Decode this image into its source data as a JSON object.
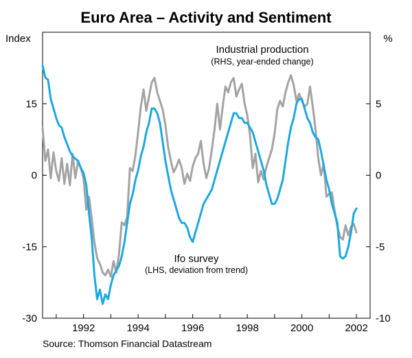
{
  "chart_data": {
    "type": "line",
    "title": "Euro Area – Activity and Sentiment",
    "left_axis": {
      "label": "Index",
      "ylim": [
        -30,
        30
      ],
      "ticks": [
        15,
        0,
        -15,
        -30
      ],
      "tick_labels": [
        "15",
        "0",
        "-15",
        "-30"
      ]
    },
    "right_axis": {
      "label": "%",
      "ylim": [
        -10,
        10
      ],
      "ticks": [
        5,
        0,
        -5,
        -10
      ],
      "tick_labels": [
        "5",
        "0",
        "-5",
        "-10"
      ]
    },
    "x_axis": {
      "xlim": [
        1990.5,
        2002.5
      ],
      "ticks": [
        1992,
        1994,
        1996,
        1998,
        2000,
        2002
      ],
      "tick_labels": [
        "1992",
        "1994",
        "1996",
        "1998",
        "2000",
        "2002"
      ]
    },
    "grid": false,
    "series": [
      {
        "name": "Industrial production",
        "annotation": "Industrial production",
        "annotation_sub": "(RHS, year-ended change)",
        "axis": "right",
        "color": "#a3a3a3",
        "x": [
          1990.5,
          1990.6,
          1990.7,
          1990.8,
          1990.9,
          1991.0,
          1991.1,
          1991.2,
          1991.3,
          1991.4,
          1991.5,
          1991.6,
          1991.7,
          1991.8,
          1991.9,
          1992.0,
          1992.1,
          1992.2,
          1992.3,
          1992.4,
          1992.5,
          1992.6,
          1992.7,
          1992.8,
          1992.9,
          1993.0,
          1993.1,
          1993.2,
          1993.3,
          1993.4,
          1993.5,
          1993.6,
          1993.7,
          1993.8,
          1993.9,
          1994.0,
          1994.1,
          1994.2,
          1994.3,
          1994.4,
          1994.5,
          1994.6,
          1994.7,
          1994.8,
          1994.9,
          1995.0,
          1995.1,
          1995.2,
          1995.3,
          1995.4,
          1995.5,
          1995.6,
          1995.7,
          1995.8,
          1995.9,
          1996.0,
          1996.1,
          1996.2,
          1996.3,
          1996.4,
          1996.5,
          1996.6,
          1996.7,
          1996.8,
          1996.9,
          1997.0,
          1997.1,
          1997.2,
          1997.3,
          1997.4,
          1997.5,
          1997.6,
          1997.7,
          1997.8,
          1997.9,
          1998.0,
          1998.1,
          1998.2,
          1998.3,
          1998.4,
          1998.5,
          1998.6,
          1998.7,
          1998.8,
          1998.9,
          1999.0,
          1999.1,
          1999.2,
          1999.3,
          1999.4,
          1999.5,
          1999.6,
          1999.7,
          1999.8,
          1999.9,
          2000.0,
          2000.1,
          2000.2,
          2000.3,
          2000.4,
          2000.5,
          2000.6,
          2000.7,
          2000.8,
          2000.9,
          2001.0,
          2001.1,
          2001.2,
          2001.3,
          2001.4,
          2001.5,
          2001.6,
          2001.7,
          2001.8,
          2001.9,
          2002.0
        ],
        "values": [
          3.3,
          1.0,
          1.8,
          -0.2,
          1.6,
          0.3,
          -0.4,
          1.2,
          -0.6,
          0.8,
          -0.7,
          1.5,
          -0.2,
          1.0,
          0.5,
          -0.2,
          -2.4,
          -1.5,
          -3.0,
          -4.7,
          -5.8,
          -6.2,
          -6.8,
          -7.0,
          -6.6,
          -7.1,
          -6.0,
          -6.8,
          -5.5,
          -3.3,
          -3.5,
          -2.9,
          0.5,
          0.3,
          1.4,
          3.0,
          4.8,
          6.0,
          4.5,
          5.5,
          6.5,
          6.8,
          5.8,
          5.2,
          4.6,
          3.5,
          2.0,
          1.0,
          0.2,
          0.6,
          1.1,
          0.5,
          -0.6,
          0.1,
          -0.4,
          0.6,
          1.2,
          1.5,
          2.4,
          0.8,
          -0.2,
          0.5,
          1.8,
          3.2,
          5.0,
          3.2,
          4.8,
          6.2,
          5.8,
          6.5,
          6.8,
          5.5,
          6.0,
          6.4,
          5.0,
          4.2,
          2.8,
          0.5,
          1.5,
          -0.5,
          0.3,
          -0.3,
          0.6,
          1.2,
          1.8,
          2.9,
          4.6,
          5.2,
          4.8,
          5.8,
          6.5,
          7.0,
          6.3,
          5.2,
          5.7,
          5.2,
          4.8,
          5.0,
          6.2,
          4.8,
          3.2,
          1.2,
          0.0,
          0.8,
          -1.5,
          -1.3,
          -1.2,
          -2.5,
          -3.6,
          -4.3,
          -4.5,
          -3.5,
          -4.2,
          -3.6,
          -3.4,
          -4.0
        ]
      },
      {
        "name": "Ifo survey",
        "annotation": "Ifo survey",
        "annotation_sub": "(LHS, deviation from trend)",
        "axis": "left",
        "color": "#1aa8e0",
        "x": [
          1990.5,
          1990.6,
          1990.7,
          1990.8,
          1990.9,
          1991.0,
          1991.1,
          1991.2,
          1991.3,
          1991.4,
          1991.5,
          1991.6,
          1991.7,
          1991.8,
          1991.9,
          1992.0,
          1992.1,
          1992.2,
          1992.3,
          1992.4,
          1992.5,
          1992.6,
          1992.7,
          1992.8,
          1992.9,
          1993.0,
          1993.1,
          1993.2,
          1993.3,
          1993.4,
          1993.5,
          1993.6,
          1993.7,
          1993.8,
          1993.9,
          1994.0,
          1994.1,
          1994.2,
          1994.3,
          1994.4,
          1994.5,
          1994.6,
          1994.7,
          1994.8,
          1994.9,
          1995.0,
          1995.1,
          1995.2,
          1995.3,
          1995.4,
          1995.5,
          1995.6,
          1995.7,
          1995.8,
          1995.9,
          1996.0,
          1996.1,
          1996.2,
          1996.3,
          1996.4,
          1996.5,
          1996.6,
          1996.7,
          1996.8,
          1996.9,
          1997.0,
          1997.1,
          1997.2,
          1997.3,
          1997.4,
          1997.5,
          1997.6,
          1997.7,
          1997.8,
          1997.9,
          1998.0,
          1998.1,
          1998.2,
          1998.3,
          1998.4,
          1998.5,
          1998.6,
          1998.7,
          1998.8,
          1998.9,
          1999.0,
          1999.1,
          1999.2,
          1999.3,
          1999.4,
          1999.5,
          1999.6,
          1999.7,
          1999.8,
          1999.9,
          2000.0,
          2000.1,
          2000.2,
          2000.3,
          2000.4,
          2000.5,
          2000.6,
          2000.7,
          2000.8,
          2000.9,
          2001.0,
          2001.1,
          2001.2,
          2001.3,
          2001.4,
          2001.5,
          2001.6,
          2001.7,
          2001.8,
          2001.9,
          2002.0
        ],
        "values": [
          23,
          20.5,
          20,
          16,
          14,
          12,
          10.5,
          10,
          8,
          6.5,
          5,
          4,
          3.5,
          3,
          1.5,
          0.5,
          -2,
          -8,
          -13,
          -21,
          -26,
          -24,
          -27,
          -25,
          -26,
          -23,
          -21,
          -20,
          -19,
          -17,
          -14,
          -10,
          -6,
          -4,
          -1,
          1,
          4,
          6,
          9,
          11,
          14,
          14,
          13,
          11,
          7,
          3,
          0,
          -3,
          -5,
          -7,
          -9,
          -10,
          -10,
          -11,
          -13,
          -14,
          -12,
          -10,
          -8,
          -6,
          -5,
          -4,
          -3,
          -1,
          1,
          3,
          5,
          7,
          9,
          11,
          13,
          13,
          12,
          12,
          11,
          11,
          10,
          9,
          7,
          5,
          3,
          1,
          -2,
          -4,
          -6,
          -6,
          -5,
          -3,
          -1,
          3,
          7,
          10,
          12,
          15,
          16,
          16,
          14,
          12,
          11,
          9,
          8,
          7.5,
          5,
          2,
          -1,
          -3,
          -6,
          -8,
          -10,
          -17,
          -17.5,
          -17,
          -15,
          -12,
          -8,
          -7
        ]
      }
    ],
    "source": "Source: Thomson Financial Datastream"
  }
}
